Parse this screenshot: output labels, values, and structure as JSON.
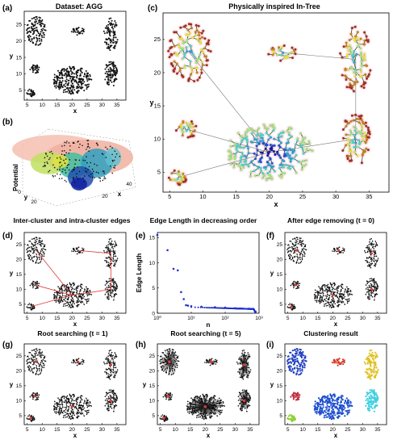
{
  "panel_labels": {
    "a": "(a)",
    "b": "(b)",
    "c": "(c)",
    "d": "(d)",
    "e": "(e)",
    "f": "(f)",
    "g": "(g)",
    "h": "(h)",
    "i": "(i)"
  },
  "titles": {
    "a": "Dataset: AGG",
    "c": "Physically inspired In-Tree",
    "d": "Inter-cluster and intra-cluster edges",
    "e": "Edge Length in decreasing order",
    "f": "After edge removing (t = 0)",
    "g": "Root searching (t = 1)",
    "h": "Root searching (t = 5)",
    "i": "Clustering result"
  },
  "axis_labels": {
    "x": "x",
    "y": "y",
    "potential": "Potential",
    "edge_length": "Edge Length",
    "n": "n"
  },
  "ticks": {
    "scatter_x": [
      "5",
      "10",
      "15",
      "20",
      "25",
      "30",
      "35"
    ],
    "scatter_y": [
      "5",
      "10",
      "15",
      "20",
      "25"
    ],
    "b_z": "0",
    "b_y": "20",
    "b_x": "20",
    "b_x2": "40",
    "e_y": [
      "0",
      "5",
      "10",
      "15"
    ],
    "e_x": [
      "10⁰",
      "10¹",
      "10²",
      "10³"
    ]
  },
  "colors": {
    "point": "#111111",
    "red_edge": "#e03a3a",
    "cluster": [
      "#1f3fbf",
      "#d43a2a",
      "#e0c020",
      "#40d0e0",
      "#2050d0",
      "#c03040",
      "#90d030"
    ]
  },
  "chart_data": [
    {
      "panel": "a",
      "type": "scatter",
      "title": "Dataset: AGG",
      "xlabel": "x",
      "ylabel": "y",
      "xlim": [
        4,
        38
      ],
      "ylim": [
        2,
        29
      ],
      "clusters": [
        {
          "cx": 8,
          "cy": 23,
          "rx": 3.2,
          "ry": 4.5,
          "n": 120
        },
        {
          "cx": 22,
          "cy": 23,
          "rx": 2.3,
          "ry": 1.3,
          "n": 30
        },
        {
          "cx": 33,
          "cy": 22,
          "rx": 2.4,
          "ry": 5,
          "n": 100
        },
        {
          "cx": 33,
          "cy": 10,
          "rx": 2.2,
          "ry": 4,
          "n": 100
        },
        {
          "cx": 20,
          "cy": 8,
          "rx": 6.5,
          "ry": 4.2,
          "n": 280
        },
        {
          "cx": 7.5,
          "cy": 11.5,
          "rx": 1.6,
          "ry": 1.5,
          "n": 30
        },
        {
          "cx": 6.2,
          "cy": 4.2,
          "rx": 1.4,
          "ry": 1.2,
          "n": 30
        }
      ]
    },
    {
      "panel": "b",
      "type": "surface",
      "zlabel": "Potential"
    },
    {
      "panel": "c",
      "type": "scatter",
      "title": "Physically inspired In-Tree",
      "xlabel": "x",
      "ylabel": "y",
      "xlim": [
        4,
        38
      ],
      "ylim": [
        2,
        29
      ]
    },
    {
      "panel": "d",
      "type": "scatter",
      "title": "Inter-cluster and intra-cluster edges",
      "xlabel": "x",
      "ylabel": "y"
    },
    {
      "panel": "e",
      "type": "scatter",
      "title": "Edge Length in decreasing order",
      "xlabel": "n",
      "ylabel": "Edge Length",
      "xscale": "log",
      "xlim": [
        1,
        1000
      ],
      "ylim": [
        0,
        16
      ],
      "x": [
        1,
        2,
        3,
        4,
        5,
        6,
        7,
        8,
        10,
        20,
        50,
        100,
        200,
        500,
        788
      ],
      "y": [
        15.5,
        12.5,
        8.8,
        8.5,
        4.2,
        2.8,
        1.6,
        1.5,
        1.4,
        1.3,
        1.2,
        1.1,
        1.0,
        0.9,
        0.3
      ]
    },
    {
      "panel": "f",
      "type": "scatter",
      "title": "After edge removing (t = 0)",
      "xlabel": "x",
      "ylabel": "y"
    },
    {
      "panel": "g",
      "type": "scatter",
      "title": "Root searching (t = 1)",
      "xlabel": "x",
      "ylabel": "y"
    },
    {
      "panel": "h",
      "type": "scatter",
      "title": "Root searching (t = 5)",
      "xlabel": "x",
      "ylabel": "y"
    },
    {
      "panel": "i",
      "type": "scatter",
      "title": "Clustering result",
      "xlabel": "x",
      "ylabel": "y"
    }
  ]
}
